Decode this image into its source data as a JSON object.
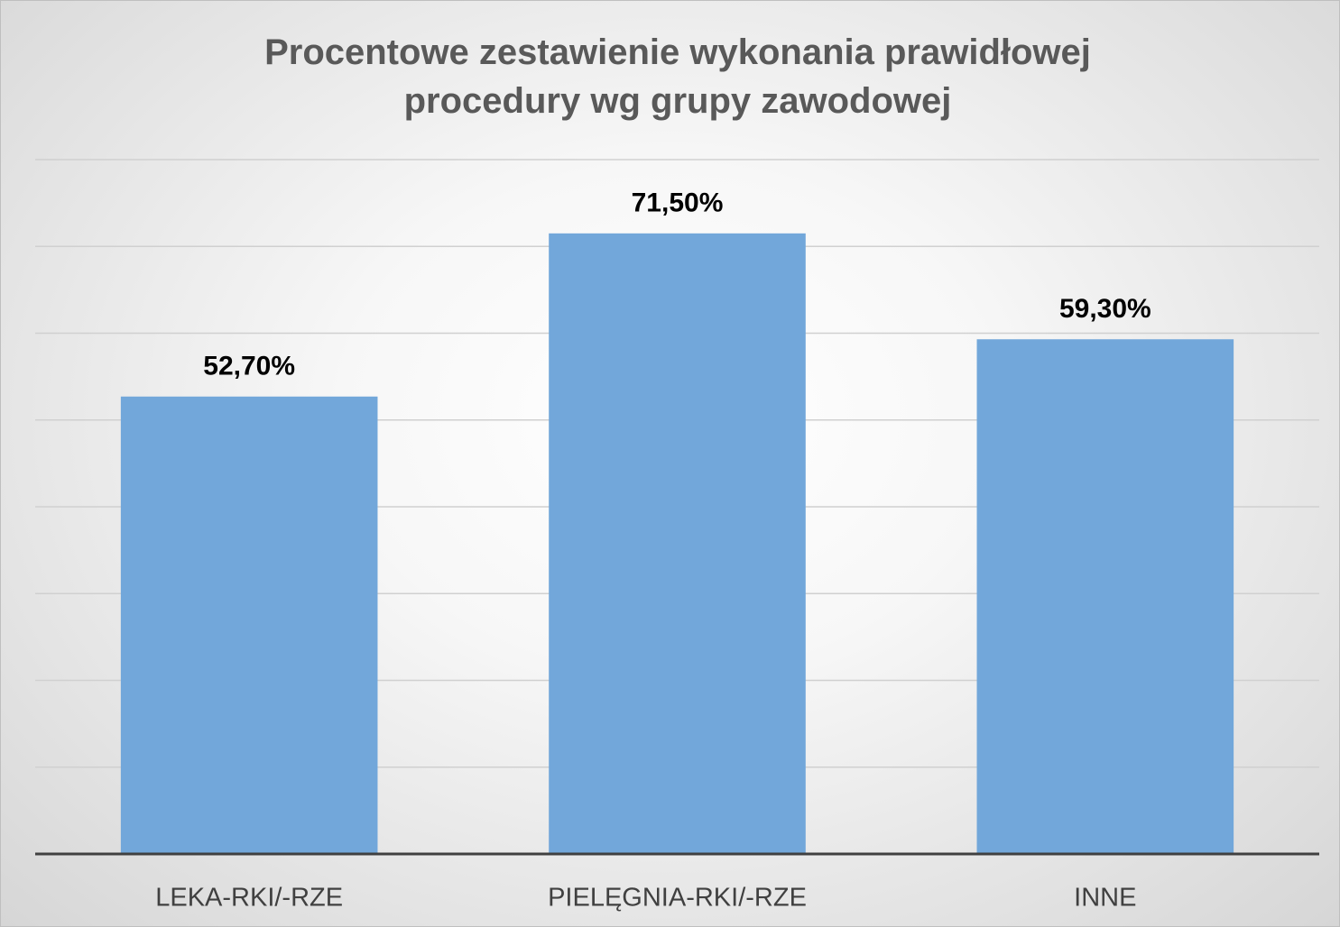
{
  "chart_data": {
    "type": "bar",
    "title": "Procentowe zestawienie wykonania prawidłowej procedury wg grupy zawodowej",
    "categories": [
      "LEKA-RKI/-RZE",
      "PIELĘGNIA-RKI/-RZE",
      "INNE"
    ],
    "values": [
      52.7,
      71.5,
      59.3
    ],
    "value_labels": [
      "52,70%",
      "71,50%",
      "59,30%"
    ],
    "color": "#72a7da",
    "ylim": [
      0,
      80
    ],
    "yticks": [
      0,
      10,
      20,
      30,
      40,
      50,
      60,
      70,
      80
    ],
    "grid": true
  }
}
